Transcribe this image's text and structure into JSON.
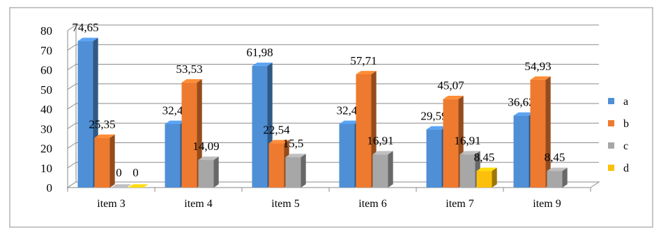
{
  "chart_data": {
    "type": "bar",
    "title": "",
    "xlabel": "",
    "ylabel": "",
    "categories": [
      "item 3",
      "item 4",
      "item 5",
      "item 6",
      "item 7",
      "item 9"
    ],
    "ylim": [
      0,
      80
    ],
    "yticks": [
      0,
      10,
      20,
      30,
      40,
      50,
      60,
      70,
      80
    ],
    "grid": true,
    "legend_position": "right",
    "series": [
      {
        "name": "a",
        "color": "#4f8fd6",
        "values": [
          74.65,
          32.4,
          61.98,
          32.4,
          29.59,
          36.62
        ],
        "labels": [
          "74,65",
          "32,4",
          "61,98",
          "32,4",
          "29,59",
          "36,62"
        ]
      },
      {
        "name": "b",
        "color": "#ee7a2f",
        "values": [
          25.35,
          53.53,
          22.54,
          57.71,
          45.07,
          54.93
        ],
        "labels": [
          "25,35",
          "53,53",
          "22,54",
          "57,71",
          "45,07",
          "54,93"
        ]
      },
      {
        "name": "c",
        "color": "#a7a7a7",
        "values": [
          0,
          14.09,
          15.5,
          16.91,
          16.91,
          8.45
        ],
        "labels": [
          "0",
          "14,09",
          "15,5",
          "16,91",
          "16,91",
          "8,45"
        ]
      },
      {
        "name": "d",
        "color": "#fcc00a",
        "values": [
          0,
          null,
          null,
          null,
          8.45,
          null
        ],
        "labels": [
          "0",
          "",
          "",
          "",
          "8,45",
          ""
        ]
      }
    ]
  }
}
